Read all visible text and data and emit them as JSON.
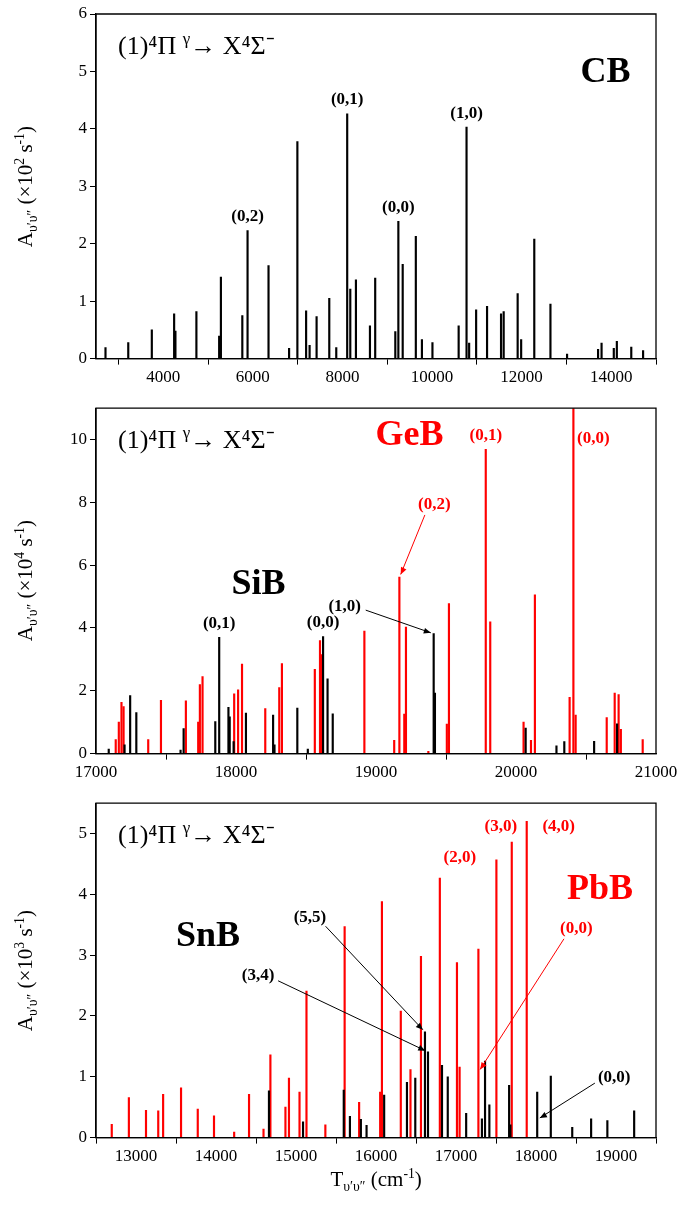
{
  "chart_data": [
    {
      "type": "bar",
      "title": "(1)⁴Π $^{γ}$→ X⁴Σ⁻",
      "ylabel": "A$_{υ′υ″}$ (×10$^{2}$ s$^{-1}$)",
      "series": [
        {
          "name": "CB",
          "color": "#000000",
          "x": [
            2712,
            3220,
            3746,
            4244,
            4273,
            4741,
            5249,
            5288,
            5766,
            5883,
            6351,
            6810,
            6995,
            7190,
            7268,
            7424,
            7707,
            7863,
            8107,
            8176,
            8302,
            8615,
            8732,
            9181,
            9249,
            9346,
            9639,
            9775,
            10010,
            10595,
            10771,
            10829,
            10985,
            11229,
            11541,
            11600,
            11912,
            11990,
            12283,
            12644,
            13015,
            13707,
            13785,
            14058,
            14126,
            14448,
            14712
          ],
          "values": [
            0.19,
            0.28,
            0.5,
            0.78,
            0.48,
            0.82,
            0.39,
            1.42,
            0.75,
            2.23,
            1.62,
            0.18,
            3.78,
            0.83,
            0.23,
            0.73,
            1.05,
            0.19,
            4.26,
            1.21,
            1.37,
            0.57,
            1.4,
            0.47,
            2.39,
            1.64,
            2.13,
            0.33,
            0.28,
            0.57,
            4.03,
            0.27,
            0.85,
            0.91,
            0.78,
            0.82,
            1.13,
            0.33,
            2.08,
            0.95,
            0.08,
            0.16,
            0.27,
            0.18,
            0.3,
            0.2,
            0.14
          ]
        }
      ],
      "annotations": [
        {
          "text": "(0,2)",
          "x": 5883,
          "y": 2.23
        },
        {
          "text": "(0,1)",
          "x": 8107,
          "y": 4.26
        },
        {
          "text": "(0,0)",
          "x": 9249,
          "y": 2.39
        },
        {
          "text": "(1,0)",
          "x": 10771,
          "y": 4.03
        }
      ],
      "xlim": [
        2500,
        15000
      ],
      "xticks": [
        4000,
        6000,
        8000,
        10000,
        12000,
        14000
      ],
      "ylim": [
        0,
        6
      ],
      "yticks": [
        0,
        1,
        2,
        3,
        4,
        5,
        6
      ],
      "grid": false,
      "legend": false
    },
    {
      "type": "bar",
      "title": "(1)⁴Π $^{γ}$→ X⁴Σ⁻",
      "ylabel": "A$_{υ′υ″}$ (×10$^{4}$ s$^{-1}$)",
      "series": [
        {
          "name": "SiB",
          "color": "#000000",
          "x": [
            17091,
            17204,
            17244,
            17288,
            17604,
            17626,
            17852,
            17880,
            17946,
            17955,
            17983,
            18071,
            18265,
            18275,
            18438,
            18513,
            18622,
            18654,
            18691,
            19412,
            19421,
            20069,
            20289,
            20345,
            20558,
            20722
          ],
          "values": [
            0.14,
            0.28,
            1.85,
            1.31,
            0.11,
            0.8,
            1.02,
            3.7,
            1.47,
            1.17,
            0.38,
            1.29,
            1.23,
            0.28,
            1.45,
            0.14,
            3.73,
            2.38,
            1.27,
            3.82,
            1.93,
            0.81,
            0.25,
            0.38,
            0.39,
            0.95
          ]
        },
        {
          "name": "GeB",
          "color": "#ff0000",
          "x": [
            17141,
            17163,
            17182,
            17197,
            17373,
            17464,
            17642,
            17730,
            17742,
            17761,
            17987,
            18015,
            18043,
            18209,
            18309,
            18328,
            18563,
            18600,
            18610,
            18917,
            19130,
            19167,
            19202,
            19214,
            19374,
            19506,
            19521,
            19784,
            19816,
            20054,
            20107,
            20135,
            20383,
            20410,
            20426,
            20648,
            20705,
            20733,
            20749,
            20905
          ],
          "values": [
            0.45,
            1.0,
            1.63,
            1.5,
            0.45,
            1.7,
            1.68,
            1.0,
            2.2,
            2.45,
            1.9,
            2.03,
            2.85,
            1.43,
            2.1,
            2.87,
            2.68,
            3.6,
            3.15,
            3.9,
            0.42,
            5.62,
            1.26,
            4.03,
            0.07,
            0.94,
            4.78,
            9.69,
            4.2,
            1.0,
            0.42,
            5.06,
            1.79,
            11,
            1.23,
            1.15,
            1.93,
            1.88,
            0.77,
            0.45
          ]
        }
      ],
      "annotations": [
        {
          "text": "(0,1)",
          "x": 17880,
          "y": 3.7
        },
        {
          "text": "(0,0)",
          "x": 18622,
          "y": 3.73
        },
        {
          "text": "(1,0)",
          "x": 19412,
          "y": 3.82
        },
        {
          "text": "(0,1)",
          "x": 19784,
          "y": 9.69
        },
        {
          "text": "(0,2)",
          "x": 19167,
          "y": 5.62
        },
        {
          "text": "(0,0)",
          "x": 20410,
          "y": 11
        }
      ],
      "xlim": [
        17000,
        21000
      ],
      "xticks": [
        17000,
        18000,
        19000,
        20000,
        21000
      ],
      "ylim": [
        0,
        11
      ],
      "yticks": [
        0,
        2,
        4,
        6,
        8,
        10
      ],
      "grid": false,
      "legend": false
    },
    {
      "type": "bar",
      "title": "(1)⁴Π $^{γ}$→ X⁴Σ⁻",
      "ylabel": "A$_{υ′υ″}$ (×10$^{3}$ s$^{-1}$)",
      "xlabel": "T$_{υ′υ″}$ (cm$^{-1}$)",
      "series": [
        {
          "name": "SnB",
          "color": "#000000",
          "x": [
            14662,
            15088,
            15597,
            15674,
            15811,
            15882,
            16102,
            16387,
            16491,
            16612,
            16650,
            16825,
            16897,
            17127,
            17324,
            17363,
            17417,
            17664,
            17680,
            18015,
            18185,
            18453,
            18689,
            18892,
            19227
          ],
          "values": [
            0.77,
            0.26,
            0.78,
            0.35,
            0.3,
            0.2,
            0.7,
            0.91,
            0.98,
            1.74,
            1.41,
            1.19,
            1.0,
            0.4,
            0.31,
            1.26,
            0.54,
            0.86,
            0.21,
            0.75,
            1.01,
            0.17,
            0.31,
            0.28,
            0.44
          ]
        },
        {
          "name": "PbB",
          "color": "#ff0000",
          "x": [
            12697,
            12911,
            13125,
            13278,
            13339,
            13563,
            13772,
            13975,
            14227,
            14413,
            14594,
            14680,
            14868,
            14912,
            15044,
            15131,
            15367,
            15608,
            15789,
            16052,
            16074,
            16310,
            16431,
            16562,
            16798,
            17012,
            17045,
            17280,
            17505,
            17697,
            17884
          ],
          "values": [
            0.22,
            0.66,
            0.45,
            0.44,
            0.71,
            0.82,
            0.47,
            0.36,
            0.09,
            0.71,
            0.14,
            1.36,
            0.5,
            0.98,
            0.75,
            2.41,
            0.21,
            3.47,
            0.58,
            0.75,
            3.88,
            2.08,
            1.12,
            2.98,
            4.27,
            2.88,
            1.16,
            3.1,
            4.57,
            4.86,
            5.2
          ]
        }
      ],
      "annotations": [
        {
          "text": "(5,5)",
          "x": 16612,
          "y": 1.74
        },
        {
          "text": "(3,4)",
          "x": 16650,
          "y": 1.41
        },
        {
          "text": "(0,0)",
          "x": 18015,
          "y": 0.3
        },
        {
          "text": "(2,0)",
          "x": 16798,
          "y": 4.27
        },
        {
          "text": "(3,0)",
          "x": 17697,
          "y": 4.86
        },
        {
          "text": "(4,0)",
          "x": 17884,
          "y": 5.2
        },
        {
          "text": "(0,0)",
          "x": 17280,
          "y": 1.08
        }
      ],
      "xlim": [
        12500,
        19500
      ],
      "xticks": [
        13000,
        14000,
        15000,
        16000,
        17000,
        18000,
        19000
      ],
      "ylim": [
        0,
        5.5
      ],
      "yticks": [
        0,
        1,
        2,
        3,
        4,
        5
      ],
      "grid": false,
      "legend": false
    }
  ]
}
